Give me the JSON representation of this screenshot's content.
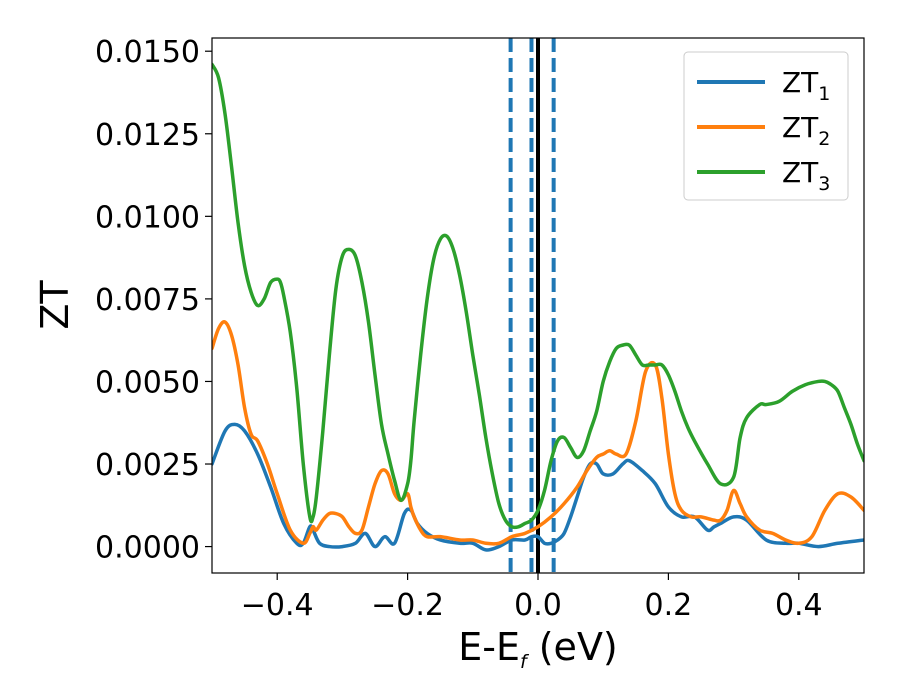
{
  "chart_data": {
    "type": "line",
    "xlabel": "E-E",
    "xlabel_sub": "f",
    "xlabel_unit": " (eV)",
    "ylabel": "ZT",
    "xlim": [
      -0.5,
      0.5
    ],
    "ylim": [
      -0.0008,
      0.0154
    ],
    "xticks": [
      -0.4,
      -0.2,
      0.0,
      0.2,
      0.4
    ],
    "xtick_labels": [
      "−0.4",
      "−0.2",
      "0.0",
      "0.2",
      "0.4"
    ],
    "yticks": [
      0.0,
      0.0025,
      0.005,
      0.0075,
      0.01,
      0.0125,
      0.015
    ],
    "ytick_labels": [
      "0.0000",
      "0.0025",
      "0.0050",
      "0.0075",
      "0.0100",
      "0.0125",
      "0.0150"
    ],
    "legend_position": "top-right",
    "vlines": [
      {
        "x": -0.042,
        "style": "dashed",
        "color": "#1f77b4"
      },
      {
        "x": -0.01,
        "style": "dashed",
        "color": "#1f77b4"
      },
      {
        "x": 0.0,
        "style": "solid",
        "color": "#000000"
      },
      {
        "x": 0.024,
        "style": "dashed",
        "color": "#1f77b4"
      }
    ],
    "series": [
      {
        "name": "ZT",
        "sub": "1",
        "color": "#1f77b4",
        "x": [
          -0.5,
          -0.48,
          -0.465,
          -0.45,
          -0.43,
          -0.41,
          -0.39,
          -0.37,
          -0.36,
          -0.35,
          -0.345,
          -0.335,
          -0.32,
          -0.3,
          -0.28,
          -0.265,
          -0.25,
          -0.235,
          -0.22,
          -0.205,
          -0.195,
          -0.185,
          -0.17,
          -0.15,
          -0.12,
          -0.1,
          -0.08,
          -0.06,
          -0.04,
          -0.02,
          -0.01,
          0.0,
          0.01,
          0.02,
          0.03,
          0.04,
          0.05,
          0.06,
          0.07,
          0.08,
          0.09,
          0.1,
          0.115,
          0.13,
          0.14,
          0.16,
          0.18,
          0.2,
          0.22,
          0.24,
          0.26,
          0.27,
          0.28,
          0.3,
          0.32,
          0.35,
          0.38,
          0.4,
          0.43,
          0.46,
          0.5
        ],
        "y": [
          0.0025,
          0.0035,
          0.0037,
          0.0035,
          0.0028,
          0.0018,
          0.0007,
          0.0001,
          0.0001,
          0.0006,
          0.0005,
          0.0001,
          0.0,
          0.0,
          0.0001,
          0.0004,
          0.0,
          0.0003,
          0.0001,
          0.001,
          0.0011,
          0.0007,
          0.0004,
          0.0002,
          0.0001,
          0.0001,
          -0.0001,
          0.0,
          0.0002,
          0.0002,
          0.0003,
          0.0003,
          0.0001,
          0.0001,
          0.0002,
          0.0004,
          0.0009,
          0.0015,
          0.0021,
          0.0025,
          0.0025,
          0.0022,
          0.0022,
          0.0025,
          0.0026,
          0.0023,
          0.0019,
          0.0012,
          0.0009,
          0.0009,
          0.0005,
          0.0006,
          0.0007,
          0.0009,
          0.0008,
          0.0002,
          0.0001,
          0.0001,
          0.0,
          0.0001,
          0.0002
        ]
      },
      {
        "name": "ZT",
        "sub": "2",
        "color": "#ff7f0e",
        "x": [
          -0.5,
          -0.49,
          -0.48,
          -0.47,
          -0.46,
          -0.45,
          -0.44,
          -0.43,
          -0.415,
          -0.4,
          -0.38,
          -0.36,
          -0.35,
          -0.345,
          -0.34,
          -0.33,
          -0.32,
          -0.31,
          -0.3,
          -0.29,
          -0.28,
          -0.27,
          -0.26,
          -0.25,
          -0.24,
          -0.23,
          -0.22,
          -0.21,
          -0.2,
          -0.195,
          -0.19,
          -0.18,
          -0.17,
          -0.15,
          -0.12,
          -0.1,
          -0.08,
          -0.06,
          -0.04,
          -0.02,
          0.0,
          0.02,
          0.04,
          0.06,
          0.075,
          0.09,
          0.1,
          0.11,
          0.12,
          0.135,
          0.15,
          0.165,
          0.18,
          0.19,
          0.2,
          0.21,
          0.22,
          0.235,
          0.25,
          0.27,
          0.28,
          0.29,
          0.3,
          0.31,
          0.32,
          0.34,
          0.36,
          0.38,
          0.4,
          0.42,
          0.44,
          0.46,
          0.48,
          0.5
        ],
        "y": [
          0.006,
          0.0066,
          0.0068,
          0.0064,
          0.0055,
          0.0042,
          0.0034,
          0.0032,
          0.0025,
          0.0016,
          0.0005,
          0.0001,
          0.0004,
          0.0006,
          0.0005,
          0.0008,
          0.001,
          0.001,
          0.0009,
          0.0006,
          0.0004,
          0.0005,
          0.0012,
          0.0019,
          0.0023,
          0.0022,
          0.0016,
          0.0014,
          0.0016,
          0.0012,
          0.0009,
          0.0005,
          0.0003,
          0.0003,
          0.0002,
          0.0002,
          0.0001,
          0.0001,
          0.0003,
          0.0004,
          0.0006,
          0.0009,
          0.0013,
          0.0018,
          0.0023,
          0.0027,
          0.0028,
          0.0029,
          0.0028,
          0.0028,
          0.0038,
          0.0053,
          0.0055,
          0.0045,
          0.0028,
          0.0016,
          0.0011,
          0.0009,
          0.0009,
          0.0008,
          0.0008,
          0.0011,
          0.0017,
          0.0013,
          0.0009,
          0.0005,
          0.0004,
          0.0002,
          0.0001,
          0.0003,
          0.0011,
          0.0016,
          0.0015,
          0.0011
        ]
      },
      {
        "name": "ZT",
        "sub": "3",
        "color": "#2ca02c",
        "x": [
          -0.5,
          -0.49,
          -0.48,
          -0.47,
          -0.46,
          -0.45,
          -0.44,
          -0.43,
          -0.42,
          -0.41,
          -0.4,
          -0.395,
          -0.39,
          -0.38,
          -0.37,
          -0.36,
          -0.35,
          -0.345,
          -0.34,
          -0.33,
          -0.32,
          -0.31,
          -0.3,
          -0.29,
          -0.28,
          -0.27,
          -0.26,
          -0.25,
          -0.24,
          -0.23,
          -0.22,
          -0.21,
          -0.2,
          -0.195,
          -0.19,
          -0.18,
          -0.17,
          -0.16,
          -0.15,
          -0.14,
          -0.13,
          -0.12,
          -0.11,
          -0.1,
          -0.09,
          -0.08,
          -0.07,
          -0.06,
          -0.05,
          -0.04,
          -0.03,
          -0.02,
          -0.01,
          0.0,
          0.01,
          0.02,
          0.03,
          0.04,
          0.05,
          0.06,
          0.07,
          0.08,
          0.09,
          0.1,
          0.11,
          0.12,
          0.13,
          0.14,
          0.15,
          0.16,
          0.17,
          0.18,
          0.19,
          0.2,
          0.21,
          0.22,
          0.23,
          0.24,
          0.26,
          0.28,
          0.3,
          0.31,
          0.32,
          0.34,
          0.35,
          0.37,
          0.39,
          0.41,
          0.43,
          0.44,
          0.45,
          0.46,
          0.47,
          0.48,
          0.49,
          0.5
        ],
        "y": [
          0.0146,
          0.0142,
          0.0131,
          0.0115,
          0.0098,
          0.0085,
          0.0077,
          0.0073,
          0.0075,
          0.008,
          0.0081,
          0.008,
          0.0076,
          0.0065,
          0.0048,
          0.0025,
          0.0009,
          0.0009,
          0.0015,
          0.0035,
          0.0058,
          0.0078,
          0.0088,
          0.009,
          0.0088,
          0.008,
          0.0068,
          0.0052,
          0.0037,
          0.0028,
          0.002,
          0.0014,
          0.0019,
          0.0026,
          0.0038,
          0.0058,
          0.0075,
          0.0087,
          0.0093,
          0.0094,
          0.009,
          0.0082,
          0.0071,
          0.0058,
          0.0046,
          0.0033,
          0.0022,
          0.0013,
          0.0008,
          0.0006,
          0.0006,
          0.0007,
          0.0008,
          0.0011,
          0.0017,
          0.0026,
          0.0032,
          0.0033,
          0.003,
          0.0027,
          0.0029,
          0.0035,
          0.0041,
          0.005,
          0.0056,
          0.006,
          0.0061,
          0.0061,
          0.0058,
          0.0055,
          0.0055,
          0.0055,
          0.0055,
          0.0052,
          0.0047,
          0.0041,
          0.0036,
          0.0032,
          0.0025,
          0.0019,
          0.0021,
          0.0033,
          0.0039,
          0.0043,
          0.0043,
          0.0044,
          0.0047,
          0.0049,
          0.005,
          0.005,
          0.0049,
          0.0047,
          0.0042,
          0.0037,
          0.0031,
          0.0026
        ]
      }
    ]
  }
}
